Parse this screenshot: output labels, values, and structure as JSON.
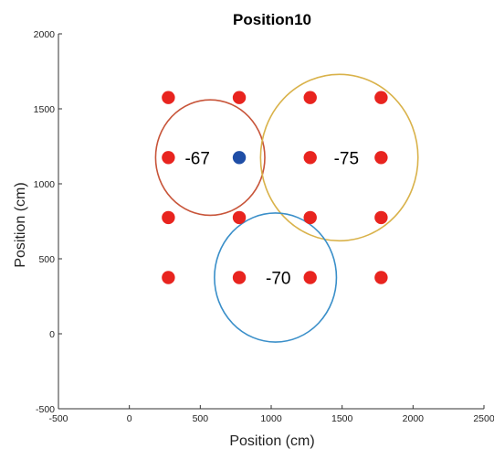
{
  "chart_data": {
    "type": "scatter",
    "title": "Position10",
    "xlabel": "Position (cm)",
    "ylabel": "Position (cm)",
    "xlim": [
      -500,
      2500
    ],
    "ylim": [
      -500,
      2000
    ],
    "xticks": [
      -500,
      0,
      500,
      1000,
      1500,
      2000,
      2500
    ],
    "yticks": [
      -500,
      0,
      500,
      1000,
      1500,
      2000
    ],
    "grid": false,
    "series": [
      {
        "color": "#e8241f",
        "points": [
          [
            275,
            1575
          ],
          [
            775,
            1575
          ],
          [
            1275,
            1575
          ],
          [
            1775,
            1575
          ],
          [
            275,
            1175
          ],
          [
            1275,
            1175
          ],
          [
            1775,
            1175
          ],
          [
            275,
            775
          ],
          [
            775,
            775
          ],
          [
            1275,
            775
          ],
          [
            1775,
            775
          ],
          [
            275,
            375
          ],
          [
            775,
            375
          ],
          [
            1275,
            375
          ],
          [
            1775,
            375
          ]
        ]
      },
      {
        "color": "#1f4ea6",
        "points": [
          [
            775,
            1175
          ]
        ]
      }
    ],
    "circles": [
      {
        "cx": 570,
        "cy": 1175,
        "r": 385,
        "color": "#c8553a",
        "label": "-67",
        "label_x": 480,
        "label_y": 1175
      },
      {
        "cx": 1480,
        "cy": 1175,
        "r": 555,
        "color": "#d9b24a",
        "label": "-75",
        "label_x": 1530,
        "label_y": 1175
      },
      {
        "cx": 1030,
        "cy": 375,
        "r": 430,
        "color": "#3a8fc9",
        "label": "-70",
        "label_x": 1050,
        "label_y": 375
      }
    ]
  }
}
